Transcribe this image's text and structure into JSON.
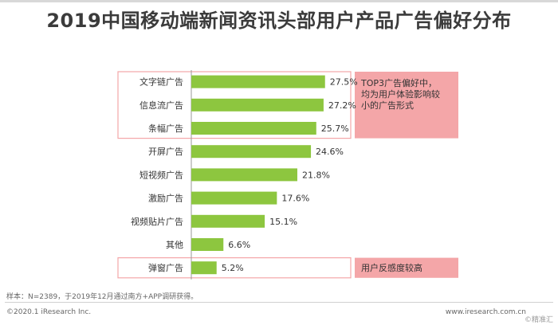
{
  "title": "2019中国移动端新闻资讯头部用户产品广告偏好分布",
  "chart_data": {
    "type": "bar",
    "orientation": "horizontal",
    "categories": [
      "文字链广告",
      "信息流广告",
      "条幅广告",
      "开屏广告",
      "短视频广告",
      "激励广告",
      "视频贴片广告",
      "其他",
      "弹窗广告"
    ],
    "values": [
      27.5,
      27.2,
      25.7,
      24.6,
      21.8,
      17.6,
      15.1,
      6.6,
      5.2
    ],
    "value_labels": [
      "27.5%",
      "27.2%",
      "25.7%",
      "24.6%",
      "21.8%",
      "17.6%",
      "15.1%",
      "6.6%",
      "5.2%"
    ],
    "bar_color": "#8dc63f",
    "xlim": [
      0,
      30
    ],
    "grid": false,
    "legend": "none",
    "annotations": [
      {
        "text_lines": [
          "TOP3广告偏好中，",
          "均为用户体验影响较",
          "小的广告形式"
        ],
        "covers": [
          0,
          2
        ],
        "color": "#f4a6a8"
      },
      {
        "text_lines": [
          "用户反感度较高"
        ],
        "covers": [
          8,
          8
        ],
        "color": "#f4a6a8"
      }
    ]
  },
  "footer": {
    "note": "样本：N=2389，于2019年12月通过南方+APP调研获得。",
    "source": "©2020.1 iResearch Inc.",
    "url": "www.iresearch.com.cn",
    "watermark": "©精准汇"
  }
}
